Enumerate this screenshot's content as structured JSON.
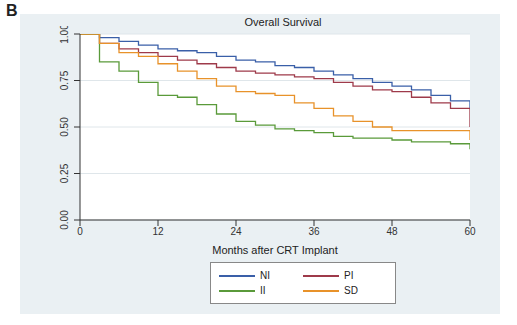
{
  "chart_data": {
    "type": "line",
    "panel_label": "B",
    "title": "Overall Survival",
    "x_label": "Months after CRT Implant",
    "x": [
      0,
      3,
      6,
      9,
      12,
      15,
      18,
      21,
      24,
      27,
      30,
      33,
      36,
      39,
      42,
      45,
      48,
      51,
      54,
      57,
      60
    ],
    "series": [
      {
        "name": "NI",
        "color": "#3a5fa8",
        "values": [
          1.0,
          0.98,
          0.96,
          0.94,
          0.92,
          0.91,
          0.9,
          0.88,
          0.86,
          0.85,
          0.83,
          0.82,
          0.8,
          0.78,
          0.76,
          0.74,
          0.72,
          0.7,
          0.67,
          0.64,
          0.6
        ]
      },
      {
        "name": "PI",
        "color": "#9e3a4a",
        "values": [
          1.0,
          0.95,
          0.92,
          0.9,
          0.88,
          0.86,
          0.84,
          0.82,
          0.8,
          0.79,
          0.78,
          0.77,
          0.76,
          0.74,
          0.72,
          0.7,
          0.69,
          0.66,
          0.63,
          0.6,
          0.5
        ]
      },
      {
        "name": "II",
        "color": "#5a9a3a",
        "values": [
          1.0,
          0.85,
          0.8,
          0.74,
          0.67,
          0.66,
          0.62,
          0.57,
          0.53,
          0.51,
          0.49,
          0.48,
          0.47,
          0.45,
          0.44,
          0.44,
          0.43,
          0.42,
          0.42,
          0.41,
          0.38
        ]
      },
      {
        "name": "SD",
        "color": "#e8922a",
        "values": [
          1.0,
          0.95,
          0.9,
          0.88,
          0.84,
          0.8,
          0.76,
          0.72,
          0.69,
          0.68,
          0.67,
          0.63,
          0.6,
          0.56,
          0.53,
          0.5,
          0.48,
          0.48,
          0.48,
          0.48,
          0.43
        ]
      }
    ],
    "xlim": [
      0,
      60
    ],
    "xticks": [
      0,
      12,
      24,
      36,
      48,
      60
    ],
    "ylim": [
      0,
      1
    ],
    "yticks": [
      {
        "value": 0,
        "label": "0.00"
      },
      {
        "value": 0.25,
        "label": "0.25"
      },
      {
        "value": 0.5,
        "label": "0.50"
      },
      {
        "value": 0.75,
        "label": "0.75"
      },
      {
        "value": 1,
        "label": "1.00"
      }
    ],
    "grid": true,
    "line_style": "step",
    "legend": "bottom"
  }
}
